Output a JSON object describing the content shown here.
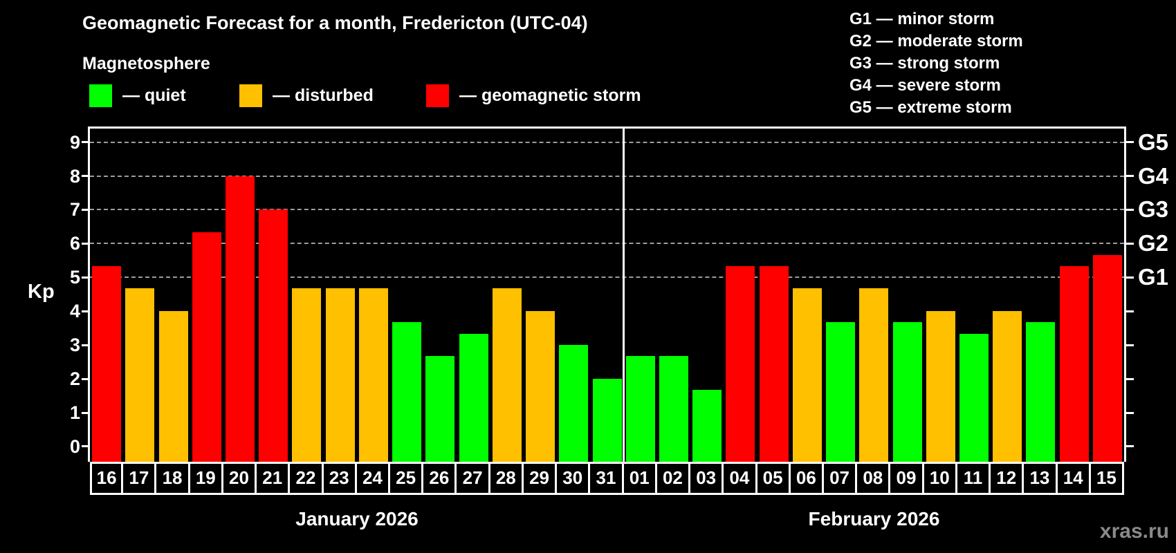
{
  "title": "Geomagnetic Forecast for a month, Fredericton (UTC-04)",
  "subtitle": "Magnetosphere",
  "legend": {
    "items": [
      {
        "key": "quiet",
        "label": "— quiet",
        "color": "#00ff00"
      },
      {
        "key": "disturbed",
        "label": "— disturbed",
        "color": "#ffc000"
      },
      {
        "key": "storm",
        "label": "— geomagnetic storm",
        "color": "#ff0000"
      }
    ]
  },
  "g_legend": [
    "G1 — minor storm",
    "G2 — moderate storm",
    "G3 — strong storm",
    "G4 — severe storm",
    "G5 — extreme storm"
  ],
  "watermark": "xras.ru",
  "chart_data": {
    "type": "bar",
    "title": "Geomagnetic Forecast for a month, Fredericton (UTC-04)",
    "ylabel": "Kp",
    "ylim": [
      -0.45,
      9.4
    ],
    "yticks": [
      0,
      1,
      2,
      3,
      4,
      5,
      6,
      7,
      8,
      9
    ],
    "grid_kp_levels": [
      5,
      6,
      7,
      8,
      9
    ],
    "grid_style": "dashed horizontal gray lines at Kp 5-9 only",
    "right_axis_labels": [
      {
        "kp": 5,
        "label": "G1"
      },
      {
        "kp": 6,
        "label": "G2"
      },
      {
        "kp": 7,
        "label": "G3"
      },
      {
        "kp": 8,
        "label": "G4"
      },
      {
        "kp": 9,
        "label": "G5"
      }
    ],
    "color_map": {
      "quiet": "#00ff00",
      "disturbed": "#ffc000",
      "storm": "#ff0000"
    },
    "state_rule": "storm if Kp >= 5, disturbed if 4 <= Kp < 5, quiet if Kp < 4",
    "months": [
      {
        "label": "January 2026",
        "days": [
          "16",
          "17",
          "18",
          "19",
          "20",
          "21",
          "22",
          "23",
          "24",
          "25",
          "26",
          "27",
          "28",
          "29",
          "30",
          "31"
        ],
        "values": [
          5.33,
          4.67,
          4.0,
          6.33,
          8.0,
          7.0,
          4.67,
          4.67,
          4.67,
          3.67,
          2.67,
          3.33,
          4.67,
          4.0,
          3.0,
          2.0
        ],
        "states": [
          "storm",
          "disturbed",
          "disturbed",
          "storm",
          "storm",
          "storm",
          "disturbed",
          "disturbed",
          "disturbed",
          "quiet",
          "quiet",
          "quiet",
          "disturbed",
          "disturbed",
          "quiet",
          "quiet"
        ]
      },
      {
        "label": "February 2026",
        "days": [
          "01",
          "02",
          "03",
          "04",
          "05",
          "06",
          "07",
          "08",
          "09",
          "10",
          "11",
          "12",
          "13",
          "14",
          "15"
        ],
        "values": [
          2.67,
          2.67,
          1.67,
          5.33,
          5.33,
          4.67,
          3.67,
          4.67,
          3.67,
          4.0,
          3.33,
          4.0,
          3.67,
          5.33,
          5.67
        ],
        "states": [
          "quiet",
          "quiet",
          "quiet",
          "storm",
          "storm",
          "disturbed",
          "quiet",
          "disturbed",
          "quiet",
          "disturbed",
          "quiet",
          "disturbed",
          "quiet",
          "storm",
          "storm"
        ]
      }
    ]
  }
}
